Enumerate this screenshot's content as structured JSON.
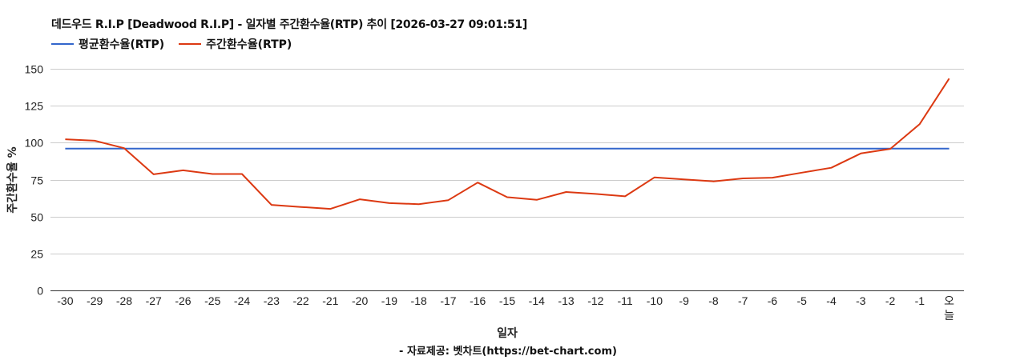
{
  "header": {
    "title": "데드우드 R.I.P [Deadwood R.I.P] - 일자별 주간환수율(RTP) 추이 [2026-03-27 09:01:51]"
  },
  "legend": [
    {
      "label": "평균환수율(RTP)",
      "color": "#3366cc"
    },
    {
      "label": "주간환수율(RTP)",
      "color": "#dc3912"
    }
  ],
  "footer": {
    "source": "- 자료제공: 벳차트(https://bet-chart.com)"
  },
  "chart_data": {
    "type": "line",
    "title": "데드우드 R.I.P [Deadwood R.I.P] - 일자별 주간환수율(RTP) 추이 [2026-03-27 09:01:51]",
    "xlabel": "일자",
    "ylabel": "주간환수율 %",
    "ylim": [
      0,
      150
    ],
    "yticks": [
      0,
      25,
      50,
      75,
      100,
      125,
      150
    ],
    "grid": true,
    "legend_position": "top",
    "categories": [
      "-30",
      "-29",
      "-28",
      "-27",
      "-26",
      "-25",
      "-24",
      "-23",
      "-22",
      "-21",
      "-20",
      "-19",
      "-18",
      "-17",
      "-16",
      "-15",
      "-14",
      "-13",
      "-12",
      "-11",
      "-10",
      "-9",
      "-8",
      "-7",
      "-6",
      "-5",
      "-4",
      "-3",
      "-2",
      "-1",
      "오늘"
    ],
    "series": [
      {
        "name": "평균환수율(RTP)",
        "color": "#3366cc",
        "values": [
          96,
          96,
          96,
          96,
          96,
          96,
          96,
          96,
          96,
          96,
          96,
          96,
          96,
          96,
          96,
          96,
          96,
          96,
          96,
          96,
          96,
          96,
          96,
          96,
          96,
          96,
          96,
          96,
          96,
          96,
          96
        ]
      },
      {
        "name": "주간환수율(RTP)",
        "color": "#dc3912",
        "values": [
          102.3,
          101.3,
          96.3,
          78.6,
          81.3,
          78.8,
          78.8,
          57.9,
          56.5,
          55.2,
          61.7,
          59.1,
          58.4,
          61.1,
          73.0,
          63.1,
          61.3,
          66.6,
          65.3,
          63.7,
          76.5,
          75.1,
          73.8,
          75.8,
          76.3,
          79.7,
          83.0,
          92.7,
          95.8,
          112.6,
          143.4
        ]
      }
    ]
  }
}
